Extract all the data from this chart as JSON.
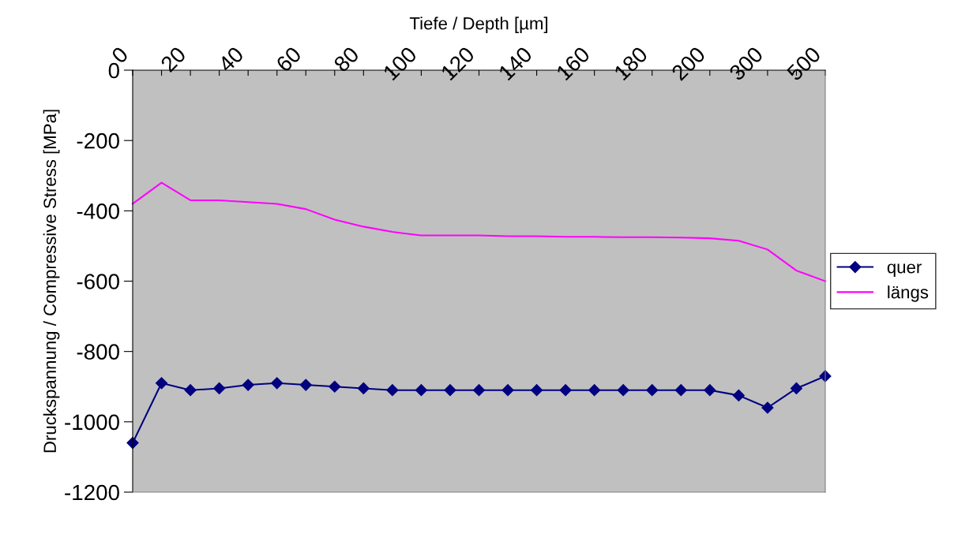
{
  "chart_data": {
    "type": "line",
    "xlabel": "Tiefe / Depth [µm]",
    "ylabel": "Druckspannung / Compressive Stress [MPa]",
    "categories": [
      "0",
      null,
      "20",
      null,
      "40",
      null,
      "60",
      null,
      "80",
      null,
      "100",
      null,
      "120",
      null,
      "140",
      null,
      "160",
      null,
      "180",
      null,
      "200",
      null,
      "300",
      null,
      "500"
    ],
    "series": [
      {
        "name": "quer",
        "color": "#000080",
        "marker": "diamond",
        "values": [
          -1060,
          -890,
          -910,
          -905,
          -895,
          -890,
          -895,
          -900,
          -905,
          -910,
          -910,
          -910,
          -910,
          -910,
          -910,
          -910,
          -910,
          -910,
          -910,
          -910,
          -910,
          -925,
          -960,
          -905,
          -870
        ]
      },
      {
        "name": "längs",
        "color": "#ff00ff",
        "marker": "none",
        "values": [
          -380,
          -320,
          -370,
          -370,
          -375,
          -380,
          -395,
          -425,
          -445,
          -460,
          -470,
          -470,
          -470,
          -472,
          -472,
          -474,
          -474,
          -475,
          -475,
          -476,
          -478,
          -485,
          -510,
          -570,
          -600
        ]
      }
    ],
    "ylim": [
      -1200,
      0
    ],
    "yticks": [
      -1200,
      -1000,
      -800,
      -600,
      -400,
      -200,
      0
    ],
    "grid": false,
    "legend": "right",
    "line_style": "solid"
  }
}
